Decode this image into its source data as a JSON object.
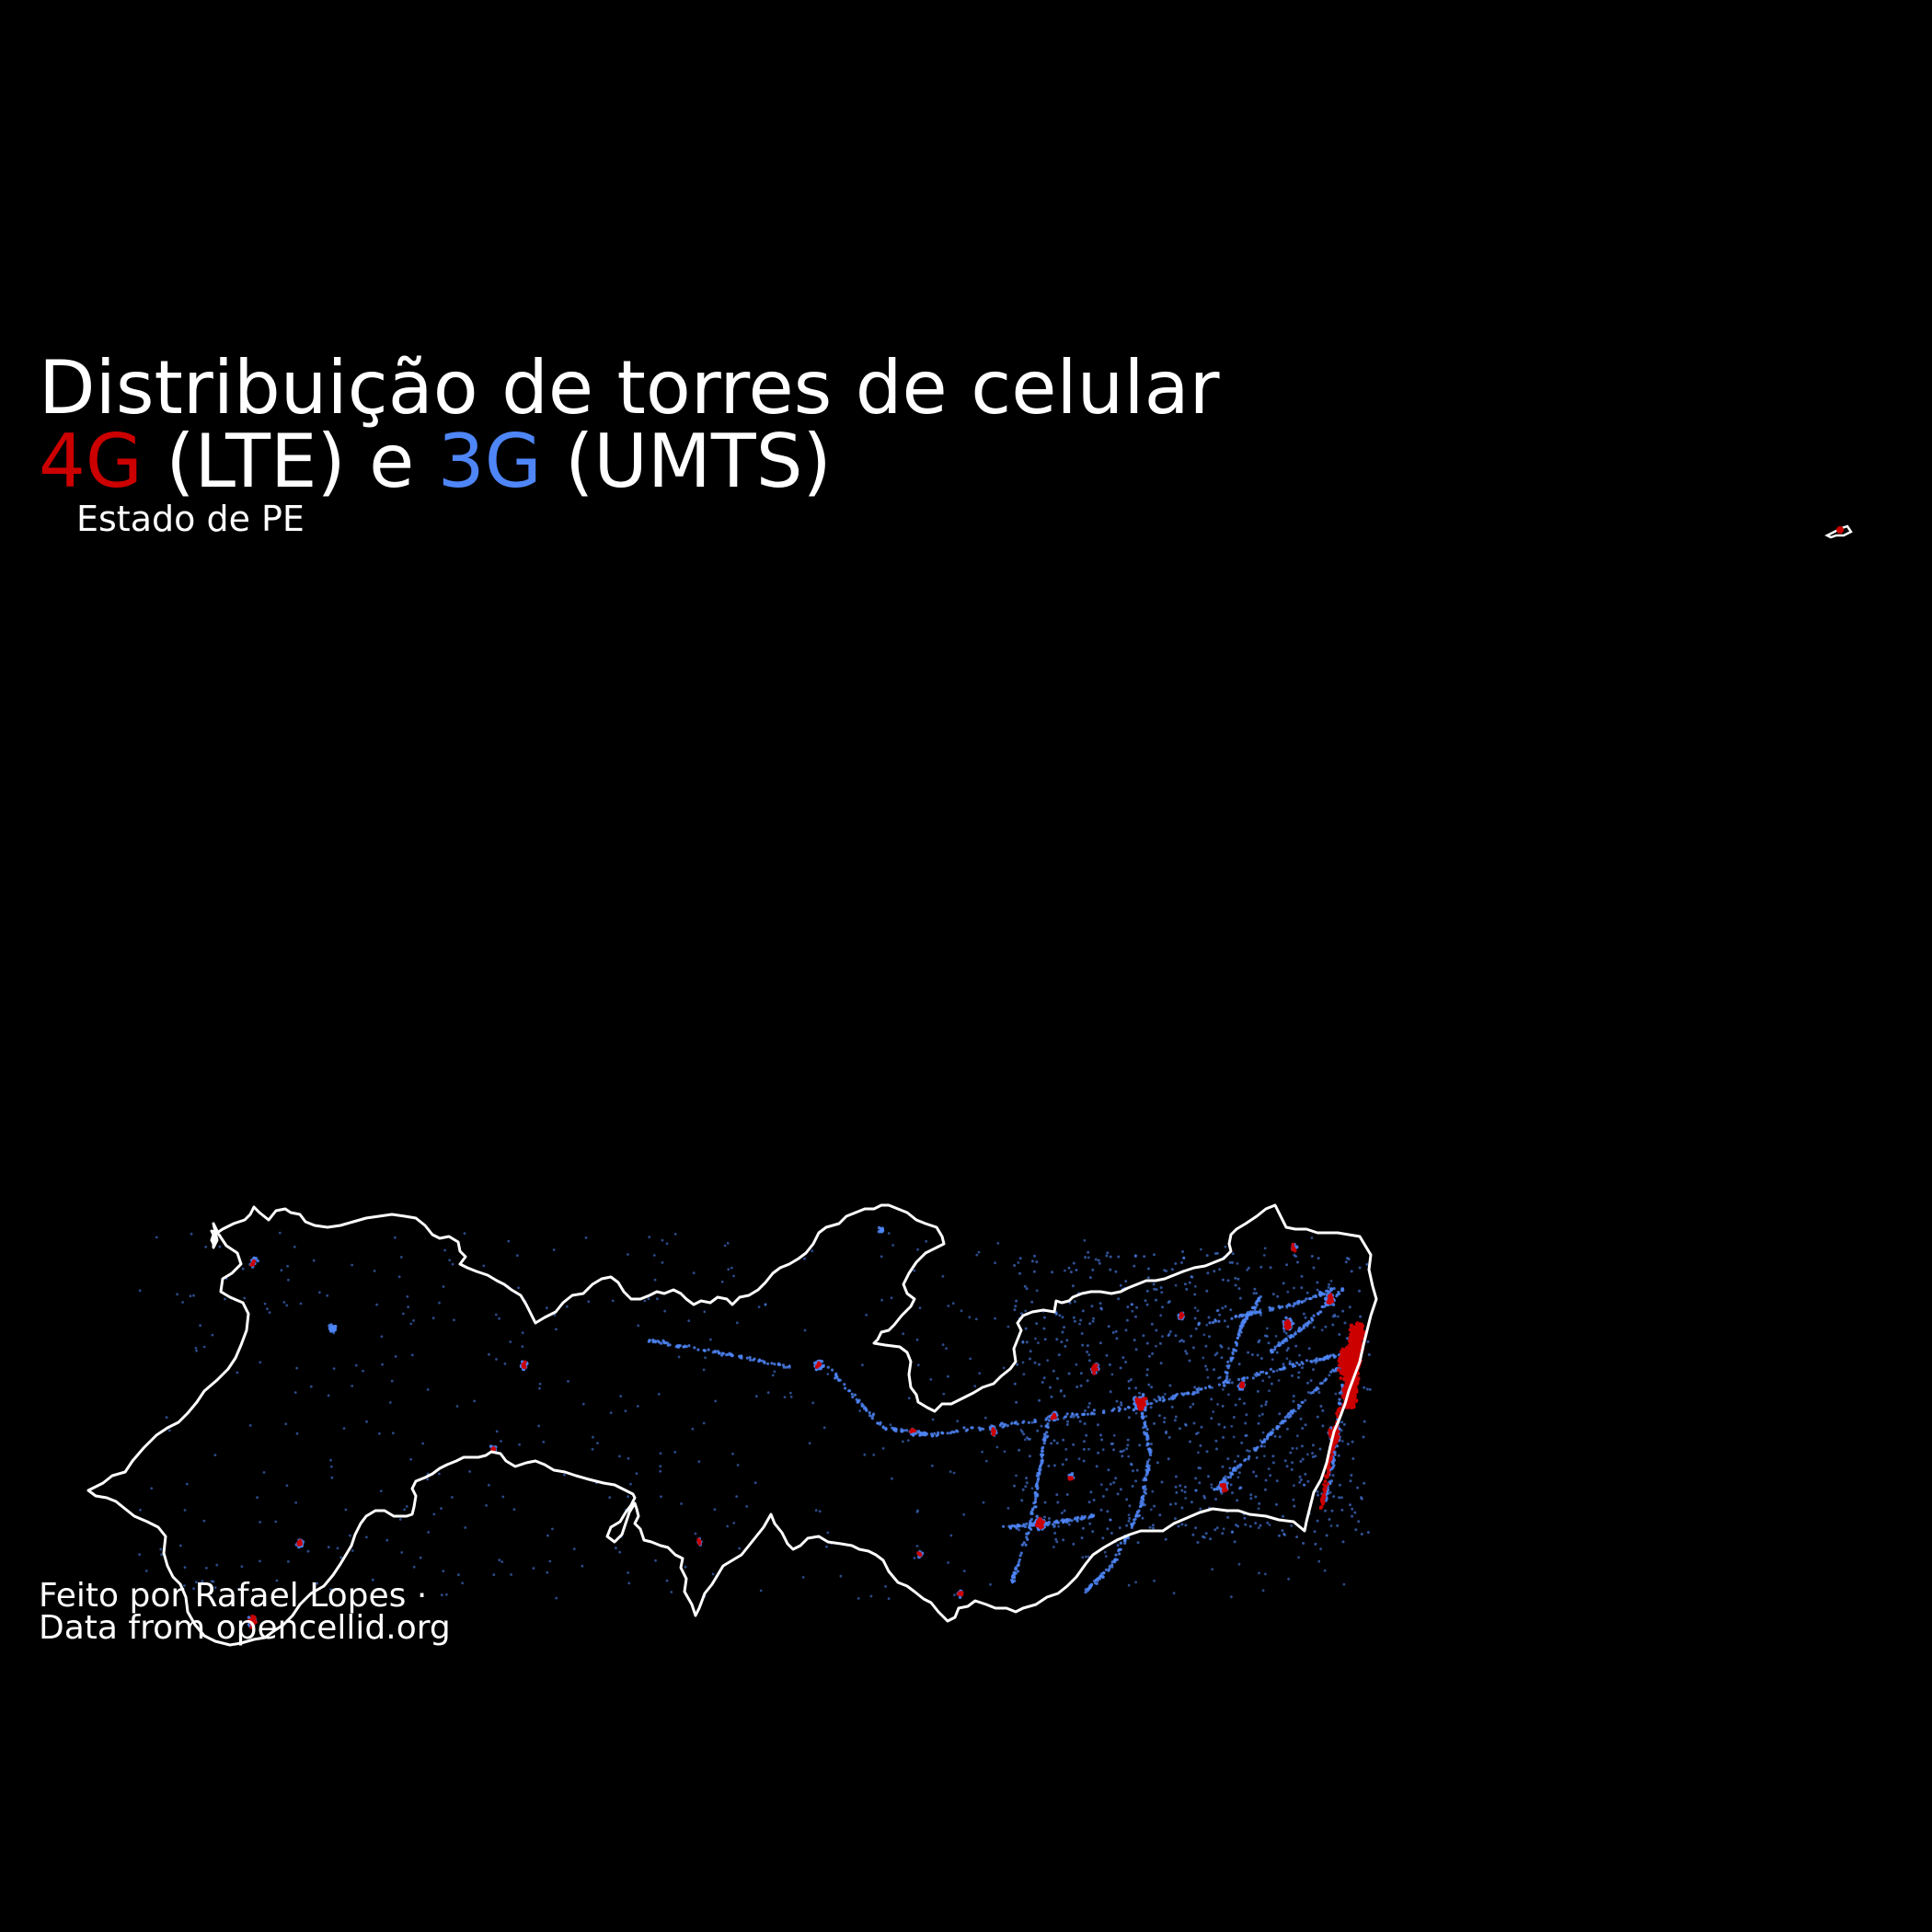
{
  "title": {
    "line1": "Distribuição de torres de celular",
    "line2": {
      "part_4g": "4G",
      "part_lte": " (LTE) e ",
      "part_3g": "3G",
      "part_umts": " (UMTS)"
    }
  },
  "subtitle": "Estado de PE",
  "caption": {
    "line1": "Feito por Rafael Lopes ·",
    "line2": "Data from opencellid.org"
  },
  "colors": {
    "background": "#000000",
    "text": "#ffffff",
    "lte": "#cc0000",
    "umts": "#4f86f7",
    "border": "#ffffff"
  },
  "legend_series": [
    {
      "name": "4G",
      "technology": "LTE",
      "color": "#cc0000"
    },
    {
      "name": "3G",
      "technology": "UMTS",
      "color": "#4f86f7"
    }
  ]
}
